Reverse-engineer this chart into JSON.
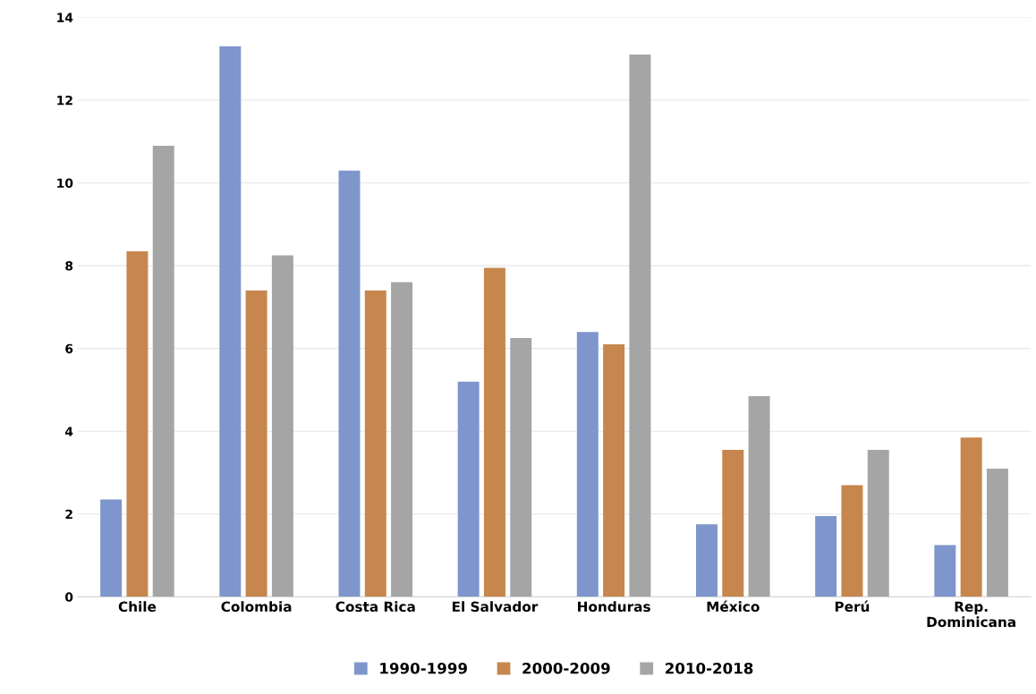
{
  "chart_data": {
    "type": "bar",
    "categories": [
      "Chile",
      "Colombia",
      "Costa Rica",
      "El Salvador",
      "Honduras",
      "México",
      "Perú",
      "Rep.\nDominicana"
    ],
    "series": [
      {
        "name": "1990-1999",
        "color": "#7f96cc",
        "values": [
          2.35,
          13.3,
          10.3,
          5.2,
          6.4,
          1.75,
          1.95,
          1.25
        ]
      },
      {
        "name": "2000-2009",
        "color": "#c6864d",
        "values": [
          8.35,
          7.4,
          7.4,
          7.95,
          6.1,
          3.55,
          2.7,
          3.85
        ]
      },
      {
        "name": "2010-2018",
        "color": "#a5a5a5",
        "values": [
          10.9,
          8.25,
          7.6,
          6.25,
          13.1,
          4.85,
          3.55,
          3.1
        ]
      }
    ],
    "ylim": [
      0,
      14
    ],
    "yticks": [
      0,
      2,
      4,
      6,
      8,
      10,
      12,
      14
    ],
    "grid": "y",
    "legend": "bottom"
  }
}
